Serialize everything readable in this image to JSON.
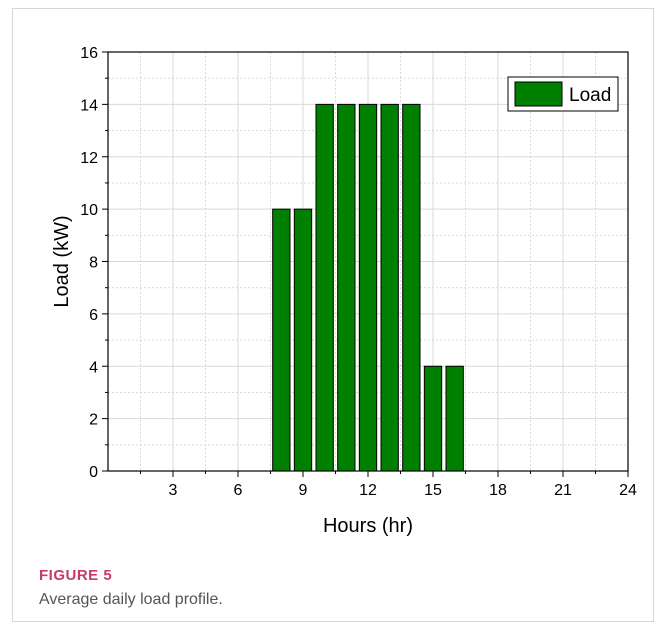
{
  "figure": {
    "label": "FIGURE 5",
    "caption": "Average daily load profile."
  },
  "colors": {
    "bar_fill": "#008000",
    "bar_stroke": "#000000",
    "grid": "#d9d9d9",
    "caption_label": "#c73a6e",
    "caption_text": "#555555"
  },
  "chart_data": {
    "type": "bar",
    "xlabel": "Hours (hr)",
    "ylabel": "Load (kW)",
    "xlim": [
      0,
      24
    ],
    "ylim": [
      0,
      16
    ],
    "x_ticks": [
      3,
      6,
      9,
      12,
      15,
      18,
      21,
      24
    ],
    "y_ticks": [
      0,
      2,
      4,
      6,
      8,
      10,
      12,
      14,
      16
    ],
    "grid": true,
    "legend": {
      "position": "top-right",
      "entries": [
        "Load"
      ]
    },
    "series": [
      {
        "name": "Load",
        "x": [
          8,
          9,
          10,
          11,
          12,
          13,
          14,
          15,
          16
        ],
        "values": [
          10,
          10,
          14,
          14,
          14,
          14,
          14,
          4,
          4
        ]
      }
    ]
  }
}
